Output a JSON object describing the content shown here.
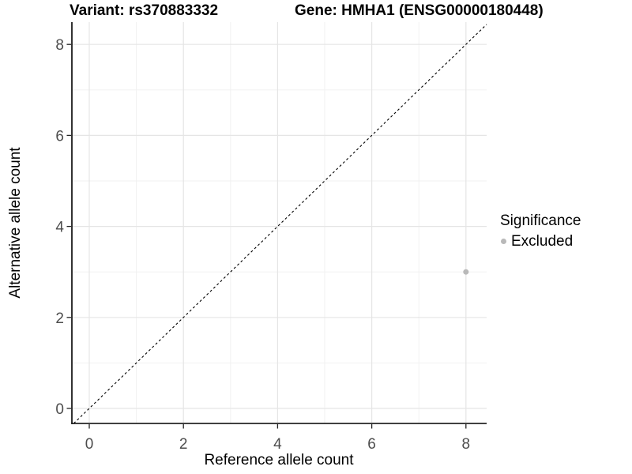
{
  "titles": {
    "variant": "Variant: rs370883332",
    "gene": "Gene: HMHA1 (ENSG00000180448)"
  },
  "chart_data": {
    "type": "scatter",
    "title": "Variant: rs370883332 | Gene: HMHA1 (ENSG00000180448)",
    "xlabel": "Reference allele count",
    "ylabel": "Alternative allele count",
    "x_ticks": [
      0,
      2,
      4,
      6,
      8
    ],
    "y_ticks": [
      0,
      2,
      4,
      6,
      8
    ],
    "xlim": [
      -0.37,
      8.44
    ],
    "ylim": [
      -0.33,
      8.49
    ],
    "grid": "major and minor gridlines, light grey on white panel",
    "legend": {
      "title": "Significance",
      "position": "right",
      "items": [
        {
          "label": "Excluded",
          "color": "#b9b9b9"
        }
      ]
    },
    "series": [
      {
        "name": "Excluded",
        "color": "#b9b9b9",
        "points": [
          [
            8,
            3
          ]
        ]
      }
    ],
    "reference_line": {
      "type": "identity y=x",
      "style": "dashed",
      "color": "#000000"
    }
  },
  "colors": {
    "grid_major": "#e5e5e5",
    "grid_minor": "#f0f0f0",
    "axis_line": "#000000",
    "tick_mark": "#222222",
    "tick_label": "#4d4d4d"
  }
}
